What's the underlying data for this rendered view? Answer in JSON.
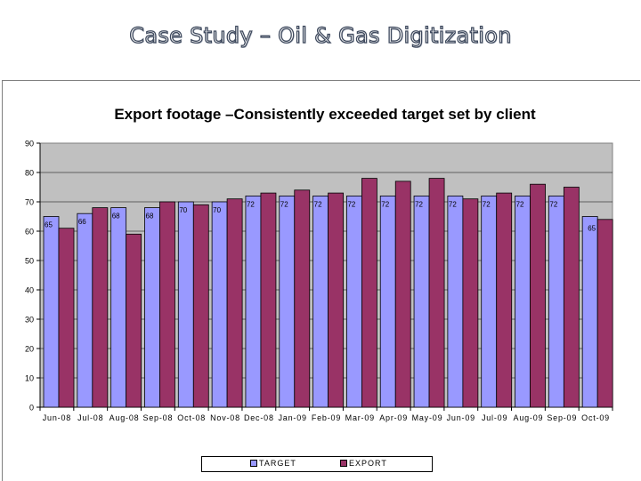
{
  "slide": {
    "title": "Case Study – Oil & Gas Digitization"
  },
  "colors": {
    "target": "#9999ff",
    "export": "#993366",
    "plot_area": "#c0c0c0"
  },
  "chart_data": {
    "type": "bar",
    "title": "Export footage –Consistently exceeded target set by client",
    "xlabel": "",
    "ylabel": "",
    "ylim": [
      0,
      90
    ],
    "yticks": [
      0,
      10,
      20,
      30,
      40,
      50,
      60,
      70,
      80,
      90
    ],
    "grid": true,
    "legend_position": "bottom",
    "categories": [
      "Jun-08",
      "Jul-08",
      "Aug-08",
      "Sep-08",
      "Oct-08",
      "Nov-08",
      "Dec-08",
      "Jan-09",
      "Feb-09",
      "Mar-09",
      "Apr-09",
      "May-09",
      "Jun-09",
      "Jul-09",
      "Aug-09",
      "Sep-09",
      "Oct-09"
    ],
    "series": [
      {
        "name": "TARGET",
        "color": "#9999ff",
        "values": [
          65,
          66,
          68,
          68,
          70,
          70,
          72,
          72,
          72,
          72,
          72,
          72,
          72,
          72,
          72,
          72,
          65
        ]
      },
      {
        "name": "EXPORT",
        "color": "#993366",
        "values": [
          61,
          68,
          59,
          70,
          69,
          71,
          73,
          74,
          73,
          78,
          77,
          78,
          71,
          73,
          76,
          75,
          64
        ]
      }
    ],
    "data_labels": [
      "65",
      "66",
      "68",
      "68",
      "70",
      "70",
      "72",
      "72",
      "72",
      "72",
      "72",
      "72",
      "72",
      "72",
      "72",
      "72",
      "65"
    ]
  }
}
